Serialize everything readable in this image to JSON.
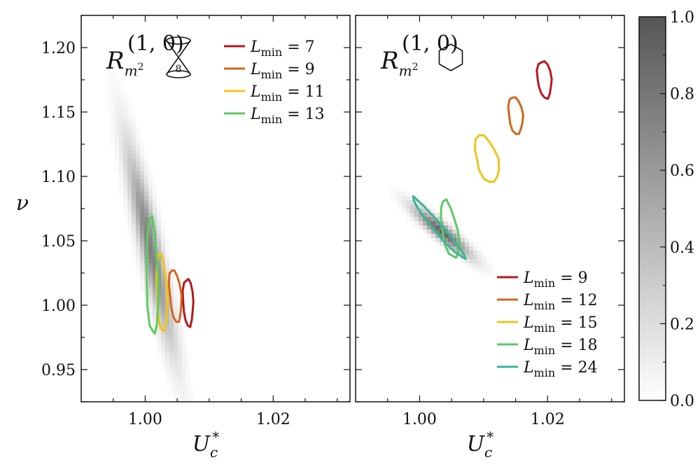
{
  "chart_data": [
    {
      "type": "contour",
      "panel": "left",
      "label": {
        "main": "R",
        "sub": "m",
        "sub_sup": "2",
        "sup": "(1, 0)",
        "icon": "hourglass-lattice-icon",
        "icon_text": "8"
      },
      "xlabel": {
        "main": "U",
        "sub": "c",
        "sup": "*"
      },
      "ylabel": "ν",
      "xlim": [
        0.99,
        1.032
      ],
      "ylim": [
        0.925,
        1.225
      ],
      "xticks": [
        1.0,
        1.02
      ],
      "xtick_labels": [
        "1.00",
        "1.02"
      ],
      "yticks": [
        0.95,
        1.0,
        1.05,
        1.1,
        1.15,
        1.2
      ],
      "ytick_labels": [
        "0.95",
        "1.00",
        "1.05",
        "1.10",
        "1.15",
        "1.20"
      ],
      "legend_position": "top-right",
      "density": {
        "center": [
          1.0008,
          1.045
        ],
        "slope": -23.0,
        "sigma_along": 0.052,
        "sigma_across": 0.0011,
        "peak": 0.75
      },
      "series": [
        {
          "name": "L_min = 7",
          "legend": {
            "label": "L",
            "sub": "min",
            "value": "7"
          },
          "color": "#b5171d",
          "center": [
            1.0067,
            1.0025
          ],
          "radius_u": 0.0008,
          "radius_nu": 0.0185,
          "tilt": -0.02
        },
        {
          "name": "L_min = 9",
          "legend": {
            "label": "L",
            "sub": "min",
            "value": "9"
          },
          "color": "#d4641c",
          "center": [
            1.0047,
            1.0075
          ],
          "radius_u": 0.0009,
          "radius_nu": 0.0205,
          "tilt": -0.05
        },
        {
          "name": "L_min = 11",
          "legend": {
            "label": "L",
            "sub": "min",
            "value": "11"
          },
          "color": "#f0c419",
          "center": [
            1.0026,
            1.0095
          ],
          "radius_u": 0.0008,
          "radius_nu": 0.0305,
          "tilt": -0.04
        },
        {
          "name": "L_min = 13",
          "legend": {
            "label": "L",
            "sub": "min",
            "value": "13"
          },
          "color": "#5ec962",
          "center": [
            1.0011,
            1.0215
          ],
          "radius_u": 0.0009,
          "radius_nu": 0.0455,
          "tilt": -0.03
        }
      ]
    },
    {
      "type": "contour",
      "panel": "right",
      "label": {
        "main": "R",
        "sub": "m",
        "sub_sup": "2",
        "sup": "(1, 0)",
        "icon": "hexagon-lattice-icon"
      },
      "xlabel": {
        "main": "U",
        "sub": "c",
        "sup": "*"
      },
      "ylabel": "",
      "xlim": [
        0.99,
        1.032
      ],
      "ylim": [
        0.925,
        1.225
      ],
      "xticks": [
        1.0,
        1.02
      ],
      "xtick_labels": [
        "1.00",
        "1.02"
      ],
      "yticks": [
        0.95,
        1.0,
        1.05,
        1.1,
        1.15,
        1.2
      ],
      "legend_position": "bottom-right",
      "density": {
        "center": [
          1.0035,
          1.057
        ],
        "slope": -4.6,
        "sigma_along": 0.013,
        "sigma_across": 0.0012,
        "peak": 0.9
      },
      "series": [
        {
          "name": "L_min = 9",
          "legend": {
            "label": "L",
            "sub": "min",
            "value": "9"
          },
          "color": "#b5171d",
          "center": [
            1.0195,
            1.1755
          ],
          "radius_u": 0.0011,
          "radius_nu": 0.0145,
          "tilt": -0.03
        },
        {
          "name": "L_min = 12",
          "legend": {
            "label": "L",
            "sub": "min",
            "value": "12"
          },
          "color": "#d4641c",
          "center": [
            1.015,
            1.1475
          ],
          "radius_u": 0.0011,
          "radius_nu": 0.0145,
          "tilt": -0.03
        },
        {
          "name": "L_min = 15",
          "legend": {
            "label": "L",
            "sub": "min",
            "value": "15"
          },
          "color": "#f0c419",
          "center": [
            1.0105,
            1.1135
          ],
          "radius_u": 0.0017,
          "radius_nu": 0.0185,
          "tilt": -0.06
        },
        {
          "name": "L_min = 18",
          "legend": {
            "label": "L",
            "sub": "min",
            "value": "18"
          },
          "color": "#5ec962",
          "center": [
            1.0047,
            1.0585
          ],
          "radius_u": 0.0012,
          "radius_nu": 0.0225,
          "tilt": -0.08
        },
        {
          "name": "L_min = 24",
          "legend": {
            "label": "L",
            "sub": "min",
            "value": "24"
          },
          "color": "#3bb39a",
          "center": [
            1.003,
            1.0595
          ],
          "radius_u": 0.0009,
          "radius_nu": 0.0235,
          "tilt": -0.55
        }
      ]
    }
  ],
  "colorbar": {
    "min": 0.0,
    "max": 1.0,
    "ticks": [
      0.0,
      0.2,
      0.4,
      0.6,
      0.8,
      1.0
    ],
    "tick_labels": [
      "0.0",
      "0.2",
      "0.4",
      "0.6",
      "0.8",
      "1.0"
    ],
    "color_low": "#ffffff",
    "color_high": "#555555"
  }
}
